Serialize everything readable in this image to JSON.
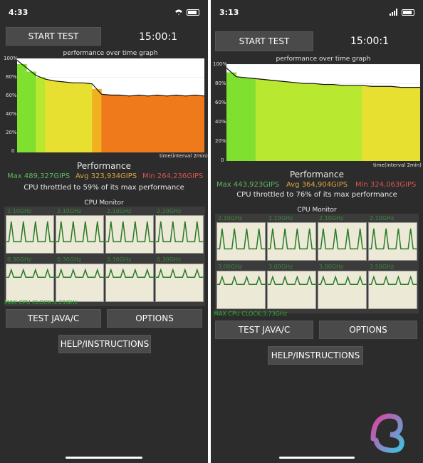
{
  "phones": [
    {
      "status_time": "4:33",
      "start_label": "START TEST",
      "timer": "15:00:1",
      "graph_title": "performance over time graph",
      "y_ticks": [
        "100%",
        "80%",
        "60%",
        "40%",
        "20%",
        "0"
      ],
      "x_label": "time(interval 2min)",
      "perf_title": "Performance",
      "max": "Max 489,327GIPS",
      "avg": "Avg 323,934GIPS",
      "min": "Min 264,236GIPS",
      "throttle": "CPU throttled to 59% of its max performance",
      "cpu_monitor": "CPU Monitor",
      "freqs": [
        "2.10GHz",
        "2.10GHz",
        "2.10GHz",
        "2.10GHz",
        "0.30GHz",
        "0.30GHz",
        "0.30GHz",
        "0.30GHz"
      ],
      "max_clock": "MAX CPU CLOCK:4.21GHz",
      "java_label": "TEST JAVA/C",
      "options_label": "OPTIONS",
      "help_label": "HELP/INSTRUCTIONS",
      "chart_data": {
        "type": "area",
        "ylabel": "",
        "ylim": [
          0,
          100
        ],
        "x": [
          0,
          1,
          2,
          3,
          4,
          5,
          6,
          7,
          8,
          9,
          10,
          11,
          12,
          13,
          14,
          15,
          16,
          17,
          18,
          19,
          20
        ],
        "values": [
          98,
          90,
          82,
          78,
          76,
          75,
          74,
          74,
          73,
          62,
          61,
          61,
          60,
          61,
          60,
          61,
          60,
          61,
          60,
          61,
          60
        ]
      }
    },
    {
      "status_time": "3:13",
      "start_label": "START TEST",
      "timer": "15:00:1",
      "graph_title": "performance over time graph",
      "y_ticks": [
        "100%",
        "80%",
        "60%",
        "40%",
        "20%",
        "0"
      ],
      "x_label": "time(interval 2min)",
      "perf_title": "Performance",
      "max": "Max 443,923GIPS",
      "avg": "Avg 364,904GIPS",
      "min": "Min 324,063GIPS",
      "throttle": "CPU throttled to 76% of its max performance",
      "cpu_monitor": "CPU Monitor",
      "freqs": [
        "2.10GHz",
        "2.10GHz",
        "2.10GHz",
        "2.10GHz",
        "3.00GHz",
        "3.00GHz",
        "3.00GHz",
        "3.50GHz"
      ],
      "max_clock": "MAX CPU CLOCK:3.73GHz",
      "java_label": "TEST JAVA/C",
      "options_label": "OPTIONS",
      "help_label": "HELP/INSTRUCTIONS",
      "chart_data": {
        "type": "area",
        "ylabel": "",
        "ylim": [
          0,
          100
        ],
        "x": [
          0,
          1,
          2,
          3,
          4,
          5,
          6,
          7,
          8,
          9,
          10,
          11,
          12,
          13,
          14,
          15,
          16,
          17,
          18,
          19,
          20
        ],
        "values": [
          96,
          87,
          86,
          85,
          84,
          83,
          82,
          81,
          80,
          80,
          79,
          79,
          78,
          78,
          78,
          77,
          77,
          77,
          76,
          76,
          76
        ]
      }
    }
  ],
  "colors": {
    "max": "#5cb85c",
    "avg": "#d9a441",
    "min": "#d9534f"
  }
}
